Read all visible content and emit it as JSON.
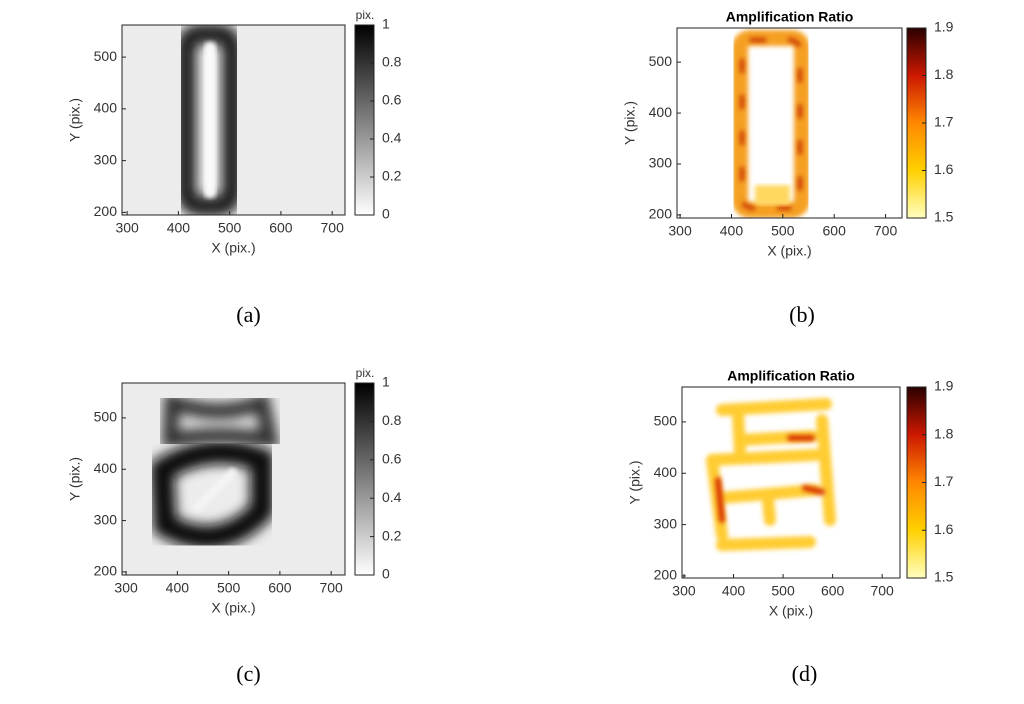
{
  "chart_data": [
    {
      "type": "image",
      "caption": "(a)",
      "xlabel": "X (pix.)",
      "ylabel": "Y (pix.)",
      "xlim": [
        290,
        725
      ],
      "ylim": [
        195,
        562
      ],
      "xticks": [
        300,
        400,
        500,
        600,
        700
      ],
      "yticks": [
        200,
        300,
        400,
        500
      ],
      "colorbar": {
        "label": "pix.",
        "lim": [
          0,
          1
        ],
        "ticks": [
          0,
          0.2,
          0.4,
          0.6,
          0.8,
          1
        ],
        "colormap": [
          "#ffffff",
          "#000000"
        ]
      }
    },
    {
      "type": "image",
      "caption": "(b)",
      "title": "Amplification Ratio",
      "xlabel": "X (pix.)",
      "ylabel": "Y (pix.)",
      "xlim": [
        294,
        732
      ],
      "ylim": [
        194,
        567
      ],
      "xticks": [
        300,
        400,
        500,
        600,
        700
      ],
      "yticks": [
        200,
        300,
        400,
        500
      ],
      "colorbar": {
        "lim": [
          1.5,
          1.9
        ],
        "ticks": [
          1.5,
          1.6,
          1.7,
          1.8,
          1.9
        ],
        "colormap": [
          "#ffffc0",
          "#ffd000",
          "#ff8800",
          "#cc1800",
          "#2a0000"
        ]
      }
    },
    {
      "type": "image",
      "caption": "(c)",
      "xlabel": "X (pix.)",
      "ylabel": "Y (pix.)",
      "xlim": [
        292,
        727
      ],
      "ylim": [
        194,
        568
      ],
      "xticks": [
        300,
        400,
        500,
        600,
        700
      ],
      "yticks": [
        200,
        300,
        400,
        500
      ],
      "colorbar": {
        "label": "pix.",
        "lim": [
          0,
          1
        ],
        "ticks": [
          0,
          0.2,
          0.4,
          0.6,
          0.8,
          1
        ],
        "colormap": [
          "#ffffff",
          "#000000"
        ]
      }
    },
    {
      "type": "image",
      "caption": "(d)",
      "title": "Amplification Ratio",
      "xlabel": "X (pix.)",
      "ylabel": "Y (pix.)",
      "xlim": [
        296,
        736
      ],
      "ylim": [
        196,
        568
      ],
      "xticks": [
        300,
        400,
        500,
        600,
        700
      ],
      "yticks": [
        200,
        300,
        400,
        500
      ],
      "colorbar": {
        "lim": [
          1.5,
          1.9
        ],
        "ticks": [
          1.5,
          1.6,
          1.7,
          1.8,
          1.9
        ],
        "colormap": [
          "#ffffc0",
          "#ffd000",
          "#ff8800",
          "#cc1800",
          "#2a0000"
        ]
      }
    }
  ]
}
